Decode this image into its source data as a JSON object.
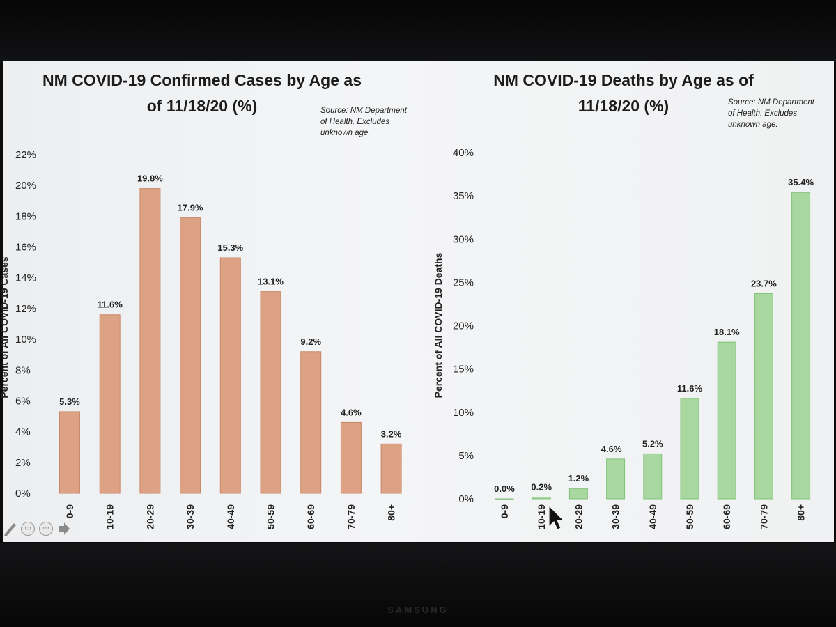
{
  "chart_data": [
    {
      "type": "bar",
      "title": [
        "NM COVID-19 Confirmed Cases by Age as",
        "of 11/18/20 (%)"
      ],
      "source": [
        "Source: NM Department",
        "of Health. Excludes",
        "unknown age."
      ],
      "ylabel": "Percent of All COVID-19 Cases",
      "categories": [
        "0-9",
        "10-19",
        "20-29",
        "30-39",
        "40-49",
        "50-59",
        "60-69",
        "70-79",
        "80+"
      ],
      "values": [
        5.3,
        11.6,
        19.8,
        17.9,
        15.3,
        13.1,
        9.2,
        4.6,
        3.2
      ],
      "data_labels": [
        "5.3%",
        "11.6%",
        "19.8%",
        "17.9%",
        "15.3%",
        "13.1%",
        "9.2%",
        "4.6%",
        "3.2%"
      ],
      "ylim": [
        0,
        22
      ],
      "y_ticks": [
        0,
        2,
        4,
        6,
        8,
        10,
        12,
        14,
        16,
        18,
        20,
        22
      ],
      "y_tick_labels": [
        "0%",
        "2%",
        "4%",
        "6%",
        "8%",
        "10%",
        "12%",
        "14%",
        "16%",
        "18%",
        "20%",
        "22%"
      ],
      "grid": false,
      "bar_color": "#dca283"
    },
    {
      "type": "bar",
      "title": [
        "NM COVID-19 Deaths by Age as of",
        "11/18/20 (%)"
      ],
      "source": [
        "Source: NM Department",
        "of Health. Excludes",
        "unknown age."
      ],
      "ylabel": "Percent of All COVID-19 Deaths",
      "categories": [
        "0-9",
        "10-19",
        "20-29",
        "30-39",
        "40-49",
        "50-59",
        "60-69",
        "70-79",
        "80+"
      ],
      "values": [
        0.0,
        0.2,
        1.2,
        4.6,
        5.2,
        11.6,
        18.1,
        23.7,
        35.4
      ],
      "data_labels": [
        "0.0%",
        "0.2%",
        "1.2%",
        "4.6%",
        "5.2%",
        "11.6%",
        "18.1%",
        "23.7%",
        "35.4%"
      ],
      "ylim": [
        0,
        40
      ],
      "y_ticks": [
        0,
        5,
        10,
        15,
        20,
        25,
        30,
        35,
        40
      ],
      "y_tick_labels": [
        "0%",
        "5%",
        "10%",
        "15%",
        "20%",
        "25%",
        "30%",
        "35%",
        "40%"
      ],
      "grid": false,
      "bar_color": "#a8d8a0"
    }
  ],
  "device": {
    "brand": "SAMSUNG"
  },
  "toolbar": {
    "icons": [
      "pen-icon",
      "subtitles-icon",
      "more-icon",
      "next-arrow-icon"
    ]
  }
}
